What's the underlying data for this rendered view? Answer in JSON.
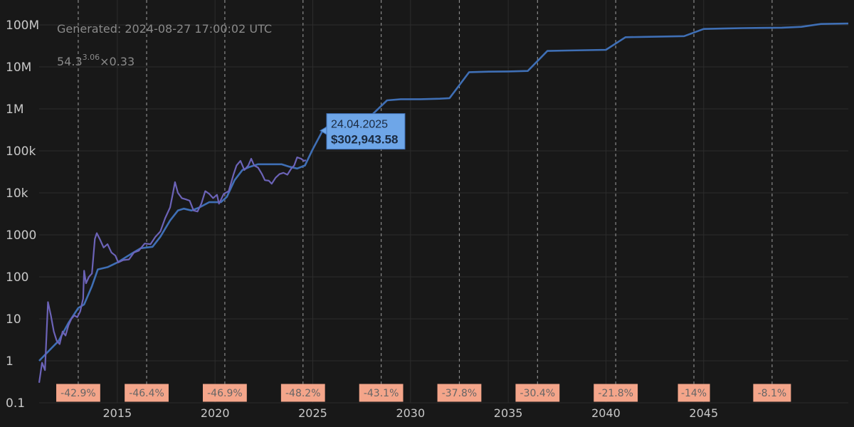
{
  "chart_data": {
    "type": "line",
    "generated": "Generated: 2024-08-27 17:00:02 UTC",
    "formula": {
      "base": "54.3",
      "exponent": "3.06",
      "suffix": "×0.33"
    },
    "y_scale": "log",
    "ylim": [
      0.1,
      100000000
    ],
    "xlim": [
      2011.0,
      2052.4
    ],
    "y_ticks": [
      {
        "value": 0.1,
        "label": "0.1"
      },
      {
        "value": 1,
        "label": "1"
      },
      {
        "value": 10,
        "label": "10"
      },
      {
        "value": 100,
        "label": "100"
      },
      {
        "value": 1000,
        "label": "1000"
      },
      {
        "value": 10000,
        "label": "10k"
      },
      {
        "value": 100000,
        "label": "100k"
      },
      {
        "value": 1000000,
        "label": "1M"
      },
      {
        "value": 10000000,
        "label": "10M"
      },
      {
        "value": 100000000,
        "label": "100M"
      }
    ],
    "x_ticks": [
      {
        "value": 2015,
        "label": "2015"
      },
      {
        "value": 2020,
        "label": "2020"
      },
      {
        "value": 2025,
        "label": "2025"
      },
      {
        "value": 2030,
        "label": "2030"
      },
      {
        "value": 2035,
        "label": "2035"
      },
      {
        "value": 2040,
        "label": "2040"
      },
      {
        "value": 2045,
        "label": "2045"
      }
    ],
    "grid": true,
    "colors": {
      "background": "#181818",
      "model": "#3f6fb5",
      "price": "#6c63b8",
      "tooltip": "#6ea6e8",
      "drawdown": "#f4a58a"
    },
    "series": [
      {
        "key": "model",
        "color": "#3f6fb5",
        "points": [
          [
            2011.0,
            1.0
          ],
          [
            2012.0,
            3.0
          ],
          [
            2012.5,
            8.0
          ],
          [
            2013.0,
            18.0
          ],
          [
            2013.3,
            22.0
          ],
          [
            2013.7,
            60.0
          ],
          [
            2014.0,
            150.0
          ],
          [
            2014.5,
            170.0
          ],
          [
            2015.0,
            220.0
          ],
          [
            2015.7,
            350.0
          ],
          [
            2016.2,
            480.0
          ],
          [
            2016.8,
            520.0
          ],
          [
            2017.2,
            900.0
          ],
          [
            2017.7,
            2200.0
          ],
          [
            2018.1,
            3800.0
          ],
          [
            2018.4,
            4200.0
          ],
          [
            2018.8,
            3800.0
          ],
          [
            2019.2,
            4500.0
          ],
          [
            2019.7,
            6000.0
          ],
          [
            2020.3,
            6000.0
          ],
          [
            2020.6,
            8000.0
          ],
          [
            2021.0,
            20000.0
          ],
          [
            2021.4,
            35000.0
          ],
          [
            2021.8,
            42000.0
          ],
          [
            2022.2,
            48000.0
          ],
          [
            2022.8,
            48000.0
          ],
          [
            2023.4,
            48000.0
          ],
          [
            2023.8,
            42000.0
          ],
          [
            2024.2,
            38000.0
          ],
          [
            2024.6,
            45000.0
          ],
          [
            2025.0,
            110000.0
          ],
          [
            2025.5,
            300000.0
          ],
          [
            2026.0,
            480000.0
          ],
          [
            2026.7,
            520000.0
          ],
          [
            2027.3,
            560000.0
          ],
          [
            2028.0,
            700000.0
          ],
          [
            2028.8,
            1600000.0
          ],
          [
            2029.5,
            1700000.0
          ],
          [
            2030.5,
            1700000.0
          ],
          [
            2031.5,
            1750000.0
          ],
          [
            2032.0,
            1800000.0
          ],
          [
            2033.0,
            7500000.0
          ],
          [
            2034.0,
            7700000.0
          ],
          [
            2035.0,
            7800000.0
          ],
          [
            2036.0,
            8000000.0
          ],
          [
            2037.0,
            24000000.0
          ],
          [
            2038.0,
            24500000.0
          ],
          [
            2039.0,
            25000000.0
          ],
          [
            2040.0,
            25500000.0
          ],
          [
            2041.0,
            51000000.0
          ],
          [
            2042.0,
            52000000.0
          ],
          [
            2043.0,
            53000000.0
          ],
          [
            2044.0,
            54000000.0
          ],
          [
            2045.0,
            80000000.0
          ],
          [
            2046.0,
            82000000.0
          ],
          [
            2047.0,
            84000000.0
          ],
          [
            2048.0,
            85000000.0
          ],
          [
            2049.0,
            86000000.0
          ],
          [
            2050.0,
            90000000.0
          ],
          [
            2051.0,
            105000000.0
          ],
          [
            2052.4,
            108000000.0
          ]
        ]
      },
      {
        "key": "price",
        "color": "#6c63b8",
        "points": [
          [
            2011.0,
            0.3
          ],
          [
            2011.15,
            0.9
          ],
          [
            2011.3,
            0.6
          ],
          [
            2011.45,
            25.0
          ],
          [
            2011.6,
            12.0
          ],
          [
            2011.75,
            5.0
          ],
          [
            2011.9,
            3.0
          ],
          [
            2012.05,
            2.5
          ],
          [
            2012.2,
            5.0
          ],
          [
            2012.35,
            4.0
          ],
          [
            2012.5,
            7.0
          ],
          [
            2012.65,
            10.0
          ],
          [
            2012.8,
            12.0
          ],
          [
            2012.95,
            11.0
          ],
          [
            2013.1,
            15.0
          ],
          [
            2013.25,
            30.0
          ],
          [
            2013.3,
            140.0
          ],
          [
            2013.4,
            70.0
          ],
          [
            2013.55,
            100.0
          ],
          [
            2013.7,
            120.0
          ],
          [
            2013.85,
            800.0
          ],
          [
            2013.95,
            1100.0
          ],
          [
            2014.1,
            800.0
          ],
          [
            2014.3,
            500.0
          ],
          [
            2014.5,
            600.0
          ],
          [
            2014.7,
            380.0
          ],
          [
            2014.9,
            320.0
          ],
          [
            2015.05,
            220.0
          ],
          [
            2015.3,
            250.0
          ],
          [
            2015.6,
            260.0
          ],
          [
            2015.85,
            380.0
          ],
          [
            2016.1,
            420.0
          ],
          [
            2016.4,
            620.0
          ],
          [
            2016.7,
            600.0
          ],
          [
            2016.95,
            900.0
          ],
          [
            2017.2,
            1200.0
          ],
          [
            2017.45,
            2500.0
          ],
          [
            2017.7,
            4500.0
          ],
          [
            2017.85,
            10000.0
          ],
          [
            2017.95,
            18000.0
          ],
          [
            2018.1,
            10000.0
          ],
          [
            2018.3,
            7500.0
          ],
          [
            2018.5,
            7000.0
          ],
          [
            2018.7,
            6500.0
          ],
          [
            2018.9,
            3800.0
          ],
          [
            2019.1,
            3600.0
          ],
          [
            2019.3,
            5500.0
          ],
          [
            2019.5,
            11000.0
          ],
          [
            2019.7,
            9500.0
          ],
          [
            2019.9,
            7500.0
          ],
          [
            2020.1,
            9000.0
          ],
          [
            2020.2,
            5500.0
          ],
          [
            2020.45,
            9500.0
          ],
          [
            2020.7,
            11000.0
          ],
          [
            2020.95,
            28000.0
          ],
          [
            2021.1,
            45000.0
          ],
          [
            2021.3,
            58000.0
          ],
          [
            2021.5,
            35000.0
          ],
          [
            2021.7,
            45000.0
          ],
          [
            2021.85,
            65000.0
          ],
          [
            2022.0,
            45000.0
          ],
          [
            2022.2,
            40000.0
          ],
          [
            2022.4,
            28000.0
          ],
          [
            2022.55,
            20000.0
          ],
          [
            2022.75,
            19500.0
          ],
          [
            2022.9,
            16500.0
          ],
          [
            2023.1,
            23000.0
          ],
          [
            2023.3,
            28000.0
          ],
          [
            2023.5,
            30000.0
          ],
          [
            2023.7,
            27000.0
          ],
          [
            2023.9,
            38000.0
          ],
          [
            2024.05,
            45000.0
          ],
          [
            2024.2,
            70000.0
          ],
          [
            2024.4,
            65000.0
          ],
          [
            2024.55,
            58000.0
          ],
          [
            2024.65,
            60000.0
          ]
        ]
      }
    ],
    "drawdown_markers": [
      {
        "x": 2013.0,
        "label": "-42.9%"
      },
      {
        "x": 2016.5,
        "label": "-46.4%"
      },
      {
        "x": 2020.5,
        "label": "-46.9%"
      },
      {
        "x": 2024.5,
        "label": "-48.2%"
      },
      {
        "x": 2028.5,
        "label": "-43.1%"
      },
      {
        "x": 2032.5,
        "label": "-37.8%"
      },
      {
        "x": 2036.5,
        "label": "-30.4%"
      },
      {
        "x": 2040.5,
        "label": "-21.8%"
      },
      {
        "x": 2044.5,
        "label": "-14%"
      },
      {
        "x": 2048.5,
        "label": "-8.1%"
      }
    ],
    "vlines": [
      2013.0,
      2016.5,
      2020.5,
      2024.5,
      2028.5,
      2032.5,
      2036.5,
      2040.5,
      2044.5,
      2048.5
    ],
    "tooltip": {
      "date": "24.04.2025",
      "value": "$302,943.58",
      "point": [
        2025.6,
        302943.58
      ]
    }
  }
}
